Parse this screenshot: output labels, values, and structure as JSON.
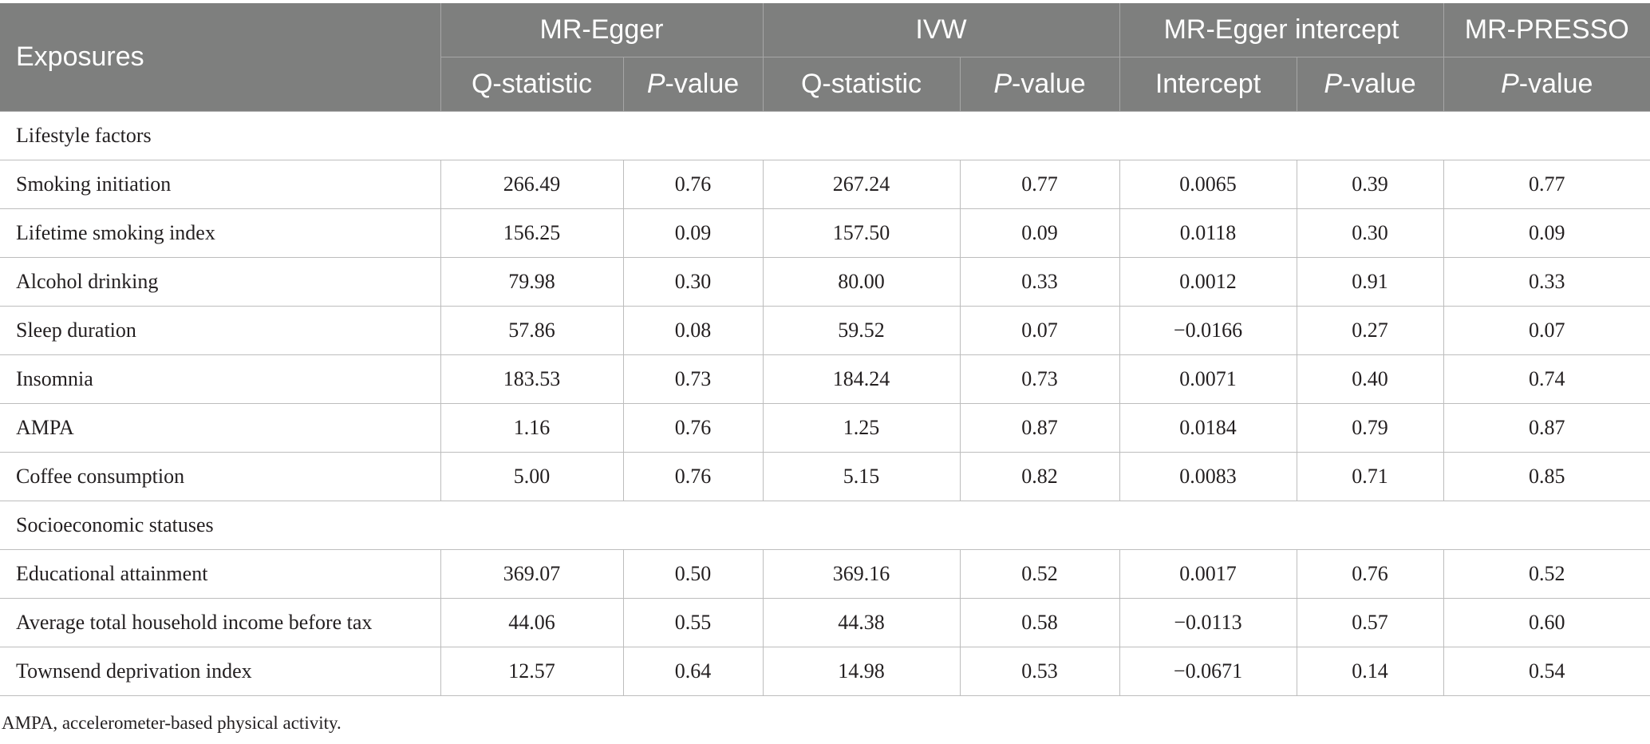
{
  "header": {
    "exposures": "Exposures",
    "groups": [
      "MR-Egger",
      "IVW",
      "MR-Egger intercept",
      "MR-PRESSO"
    ],
    "q_statistic": "Q-statistic",
    "p_prefix": "P",
    "p_suffix": "-value",
    "intercept": "Intercept"
  },
  "sections": [
    {
      "title": "Lifestyle factors",
      "rows": [
        {
          "name": "Smoking initiation",
          "values": [
            "266.49",
            "0.76",
            "267.24",
            "0.77",
            "0.0065",
            "0.39",
            "0.77"
          ]
        },
        {
          "name": "Lifetime smoking index",
          "values": [
            "156.25",
            "0.09",
            "157.50",
            "0.09",
            "0.0118",
            "0.30",
            "0.09"
          ]
        },
        {
          "name": "Alcohol drinking",
          "values": [
            "79.98",
            "0.30",
            "80.00",
            "0.33",
            "0.0012",
            "0.91",
            "0.33"
          ]
        },
        {
          "name": "Sleep duration",
          "values": [
            "57.86",
            "0.08",
            "59.52",
            "0.07",
            "−0.0166",
            "0.27",
            "0.07"
          ]
        },
        {
          "name": "Insomnia",
          "values": [
            "183.53",
            "0.73",
            "184.24",
            "0.73",
            "0.0071",
            "0.40",
            "0.74"
          ]
        },
        {
          "name": "AMPA",
          "values": [
            "1.16",
            "0.76",
            "1.25",
            "0.87",
            "0.0184",
            "0.79",
            "0.87"
          ]
        },
        {
          "name": "Coffee consumption",
          "values": [
            "5.00",
            "0.76",
            "5.15",
            "0.82",
            "0.0083",
            "0.71",
            "0.85"
          ]
        }
      ]
    },
    {
      "title": "Socioeconomic statuses",
      "rows": [
        {
          "name": "Educational attainment",
          "values": [
            "369.07",
            "0.50",
            "369.16",
            "0.52",
            "0.0017",
            "0.76",
            "0.52"
          ]
        },
        {
          "name": "Average total household income before tax",
          "values": [
            "44.06",
            "0.55",
            "44.38",
            "0.58",
            "−0.0113",
            "0.57",
            "0.60"
          ]
        },
        {
          "name": "Townsend deprivation index",
          "values": [
            "12.57",
            "0.64",
            "14.98",
            "0.53",
            "−0.0671",
            "0.14",
            "0.54"
          ]
        }
      ]
    }
  ],
  "footnote": "AMPA, accelerometer-based physical activity."
}
